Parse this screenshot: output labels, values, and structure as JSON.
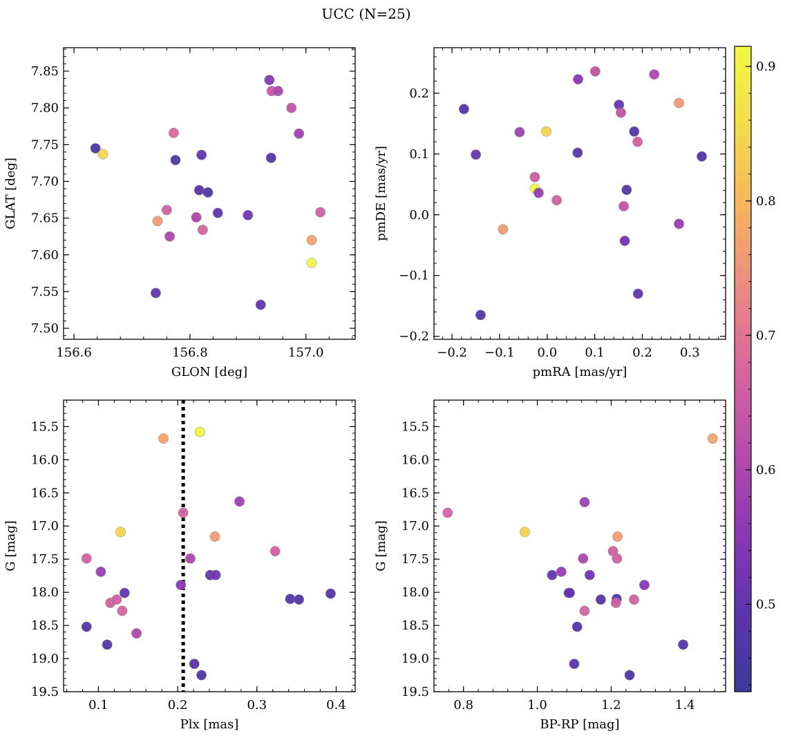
{
  "figure": {
    "title": "UCC (N=25)"
  },
  "colorbar": {
    "vmin": 0.435,
    "vmax": 0.915,
    "ticks": [
      0.5,
      0.6,
      0.7,
      0.8,
      0.9
    ],
    "tick_labels": [
      "0.5",
      "0.6",
      "0.7",
      "0.8",
      "0.9"
    ],
    "colormap": "plasma (truncated)",
    "colors": [
      "#3b3a99",
      "#5e35ad",
      "#8c38b3",
      "#b74dab",
      "#d5679e",
      "#ea8a83",
      "#f5b45e",
      "#f3dc4c",
      "#f1f744"
    ]
  },
  "chart_data": [
    {
      "type": "scatter",
      "xlabel": "GLON [deg]",
      "ylabel": "GLAT [deg]",
      "xlim": [
        156.582,
        157.085
      ],
      "ylim": [
        7.485,
        7.882
      ],
      "x_ticks": [
        156.6,
        156.8,
        157.0
      ],
      "x_tick_labels": [
        "156.6",
        "156.8",
        "157.0"
      ],
      "y_ticks": [
        7.5,
        7.55,
        7.6,
        7.65,
        7.7,
        7.75,
        7.8,
        7.85
      ],
      "y_tick_labels": [
        "7.50",
        "7.55",
        "7.60",
        "7.65",
        "7.70",
        "7.75",
        "7.80",
        "7.85"
      ],
      "points": [
        {
          "x": 156.637,
          "y": 7.745,
          "c": 0.47
        },
        {
          "x": 156.65,
          "y": 7.737,
          "c": 0.85
        },
        {
          "x": 156.772,
          "y": 7.766,
          "c": 0.68
        },
        {
          "x": 156.775,
          "y": 7.729,
          "c": 0.48
        },
        {
          "x": 156.82,
          "y": 7.736,
          "c": 0.5
        },
        {
          "x": 156.816,
          "y": 7.688,
          "c": 0.48
        },
        {
          "x": 156.831,
          "y": 7.685,
          "c": 0.47
        },
        {
          "x": 156.76,
          "y": 7.661,
          "c": 0.66
        },
        {
          "x": 156.744,
          "y": 7.646,
          "c": 0.76
        },
        {
          "x": 156.811,
          "y": 7.651,
          "c": 0.6
        },
        {
          "x": 156.822,
          "y": 7.634,
          "c": 0.67
        },
        {
          "x": 156.848,
          "y": 7.657,
          "c": 0.5
        },
        {
          "x": 156.765,
          "y": 7.625,
          "c": 0.6
        },
        {
          "x": 156.741,
          "y": 7.548,
          "c": 0.5
        },
        {
          "x": 156.9,
          "y": 7.654,
          "c": 0.52
        },
        {
          "x": 156.922,
          "y": 7.532,
          "c": 0.5
        },
        {
          "x": 156.937,
          "y": 7.838,
          "c": 0.55
        },
        {
          "x": 156.941,
          "y": 7.823,
          "c": 0.64
        },
        {
          "x": 156.952,
          "y": 7.823,
          "c": 0.6
        },
        {
          "x": 156.975,
          "y": 7.8,
          "c": 0.63
        },
        {
          "x": 156.988,
          "y": 7.765,
          "c": 0.58
        },
        {
          "x": 156.94,
          "y": 7.732,
          "c": 0.48
        },
        {
          "x": 157.025,
          "y": 7.658,
          "c": 0.66
        },
        {
          "x": 157.01,
          "y": 7.62,
          "c": 0.77
        },
        {
          "x": 157.01,
          "y": 7.589,
          "c": 0.91
        }
      ]
    },
    {
      "type": "scatter",
      "xlabel": "pmRA [mas/yr]",
      "ylabel": "pmDE [mas/yr]",
      "xlim": [
        -0.238,
        0.375
      ],
      "ylim": [
        -0.205,
        0.275
      ],
      "x_ticks": [
        -0.2,
        -0.1,
        0.0,
        0.1,
        0.2,
        0.3
      ],
      "x_tick_labels": [
        "−0.2",
        "−0.1",
        "0.0",
        "0.1",
        "0.2",
        "0.3"
      ],
      "y_ticks": [
        -0.2,
        -0.1,
        0.0,
        0.1,
        0.2
      ],
      "y_tick_labels": [
        "−0.2",
        "−0.1",
        "0.0",
        "0.1",
        "0.2"
      ],
      "points": [
        {
          "x": -0.175,
          "y": 0.174,
          "c": 0.48
        },
        {
          "x": -0.15,
          "y": 0.099,
          "c": 0.5
        },
        {
          "x": -0.14,
          "y": -0.165,
          "c": 0.47
        },
        {
          "x": -0.093,
          "y": -0.024,
          "c": 0.76
        },
        {
          "x": -0.058,
          "y": 0.136,
          "c": 0.58
        },
        {
          "x": -0.002,
          "y": 0.137,
          "c": 0.84
        },
        {
          "x": -0.026,
          "y": 0.043,
          "c": 0.91
        },
        {
          "x": -0.026,
          "y": 0.062,
          "c": 0.65
        },
        {
          "x": -0.018,
          "y": 0.036,
          "c": 0.57
        },
        {
          "x": 0.02,
          "y": 0.024,
          "c": 0.66
        },
        {
          "x": 0.065,
          "y": 0.223,
          "c": 0.55
        },
        {
          "x": 0.064,
          "y": 0.102,
          "c": 0.48
        },
        {
          "x": 0.101,
          "y": 0.236,
          "c": 0.63
        },
        {
          "x": 0.151,
          "y": 0.181,
          "c": 0.5
        },
        {
          "x": 0.155,
          "y": 0.168,
          "c": 0.63
        },
        {
          "x": 0.183,
          "y": 0.137,
          "c": 0.48
        },
        {
          "x": 0.19,
          "y": 0.12,
          "c": 0.66
        },
        {
          "x": 0.167,
          "y": 0.041,
          "c": 0.48
        },
        {
          "x": 0.161,
          "y": 0.014,
          "c": 0.63
        },
        {
          "x": 0.163,
          "y": -0.043,
          "c": 0.52
        },
        {
          "x": 0.191,
          "y": -0.13,
          "c": 0.5
        },
        {
          "x": 0.225,
          "y": 0.231,
          "c": 0.6
        },
        {
          "x": 0.277,
          "y": 0.184,
          "c": 0.76
        },
        {
          "x": 0.277,
          "y": -0.015,
          "c": 0.57
        },
        {
          "x": 0.325,
          "y": 0.096,
          "c": 0.48
        }
      ]
    },
    {
      "type": "scatter",
      "xlabel": "Plx [mas]",
      "ylabel": "G [mag]",
      "xlim": [
        0.056,
        0.424
      ],
      "ylim": [
        19.5,
        15.1
      ],
      "y_inverted": true,
      "x_ticks": [
        0.1,
        0.2,
        0.3,
        0.4
      ],
      "x_tick_labels": [
        "0.1",
        "0.2",
        "0.3",
        "0.4"
      ],
      "y_ticks": [
        15.5,
        16.0,
        16.5,
        17.0,
        17.5,
        18.0,
        18.5,
        19.0,
        19.5
      ],
      "y_tick_labels": [
        "15.5",
        "16.0",
        "16.5",
        "17.0",
        "17.5",
        "18.0",
        "18.5",
        "19.0",
        "19.5"
      ],
      "vline": {
        "x": 0.207,
        "style": "dotted",
        "color": "#000000"
      },
      "points": [
        {
          "x": 0.085,
          "y": 17.49,
          "c": 0.66
        },
        {
          "x": 0.085,
          "y": 18.52,
          "c": 0.48
        },
        {
          "x": 0.103,
          "y": 17.69,
          "c": 0.57
        },
        {
          "x": 0.111,
          "y": 18.79,
          "c": 0.48
        },
        {
          "x": 0.115,
          "y": 18.16,
          "c": 0.66
        },
        {
          "x": 0.123,
          "y": 18.11,
          "c": 0.66
        },
        {
          "x": 0.128,
          "y": 17.09,
          "c": 0.84
        },
        {
          "x": 0.13,
          "y": 18.28,
          "c": 0.67
        },
        {
          "x": 0.133,
          "y": 18.01,
          "c": 0.5
        },
        {
          "x": 0.148,
          "y": 18.62,
          "c": 0.6
        },
        {
          "x": 0.182,
          "y": 15.68,
          "c": 0.77
        },
        {
          "x": 0.204,
          "y": 17.89,
          "c": 0.55
        },
        {
          "x": 0.207,
          "y": 16.8,
          "c": 0.67
        },
        {
          "x": 0.216,
          "y": 17.49,
          "c": 0.6
        },
        {
          "x": 0.221,
          "y": 19.08,
          "c": 0.48
        },
        {
          "x": 0.228,
          "y": 15.58,
          "c": 0.91
        },
        {
          "x": 0.23,
          "y": 19.25,
          "c": 0.47
        },
        {
          "x": 0.241,
          "y": 17.74,
          "c": 0.5
        },
        {
          "x": 0.247,
          "y": 17.16,
          "c": 0.76
        },
        {
          "x": 0.248,
          "y": 17.74,
          "c": 0.52
        },
        {
          "x": 0.278,
          "y": 16.63,
          "c": 0.58
        },
        {
          "x": 0.323,
          "y": 17.38,
          "c": 0.66
        },
        {
          "x": 0.342,
          "y": 18.1,
          "c": 0.48
        },
        {
          "x": 0.353,
          "y": 18.11,
          "c": 0.48
        },
        {
          "x": 0.393,
          "y": 18.02,
          "c": 0.48
        }
      ]
    },
    {
      "type": "scatter",
      "xlabel": "BP-RP [mag]",
      "ylabel": "G [mag]",
      "xlim": [
        0.72,
        1.51
      ],
      "ylim": [
        19.5,
        15.1
      ],
      "y_inverted": true,
      "x_ticks": [
        0.8,
        1.0,
        1.2,
        1.4
      ],
      "x_tick_labels": [
        "0.8",
        "1.0",
        "1.2",
        "1.4"
      ],
      "y_ticks": [
        15.5,
        16.0,
        16.5,
        17.0,
        17.5,
        18.0,
        18.5,
        19.0,
        19.5
      ],
      "y_tick_labels": [
        "15.5",
        "16.0",
        "16.5",
        "17.0",
        "17.5",
        "18.0",
        "18.5",
        "19.0",
        "19.5"
      ],
      "points": [
        {
          "x": 1.475,
          "y": 15.68,
          "c": 0.77
        },
        {
          "x": 0.757,
          "y": 16.8,
          "c": 0.67
        },
        {
          "x": 0.966,
          "y": 17.09,
          "c": 0.84
        },
        {
          "x": 1.128,
          "y": 16.64,
          "c": 0.58
        },
        {
          "x": 1.217,
          "y": 17.16,
          "c": 0.76
        },
        {
          "x": 1.205,
          "y": 17.38,
          "c": 0.66
        },
        {
          "x": 1.216,
          "y": 17.49,
          "c": 0.66
        },
        {
          "x": 1.124,
          "y": 17.49,
          "c": 0.6
        },
        {
          "x": 1.065,
          "y": 17.69,
          "c": 0.57
        },
        {
          "x": 1.04,
          "y": 17.74,
          "c": 0.5
        },
        {
          "x": 1.142,
          "y": 17.74,
          "c": 0.52
        },
        {
          "x": 1.29,
          "y": 17.89,
          "c": 0.55
        },
        {
          "x": 1.085,
          "y": 18.01,
          "c": 0.48
        },
        {
          "x": 1.088,
          "y": 18.01,
          "c": 0.5
        },
        {
          "x": 1.172,
          "y": 18.11,
          "c": 0.48
        },
        {
          "x": 1.215,
          "y": 18.1,
          "c": 0.48
        },
        {
          "x": 1.262,
          "y": 18.11,
          "c": 0.66
        },
        {
          "x": 1.213,
          "y": 18.16,
          "c": 0.66
        },
        {
          "x": 1.128,
          "y": 18.28,
          "c": 0.67
        },
        {
          "x": 1.108,
          "y": 18.52,
          "c": 0.48
        },
        {
          "x": 1.395,
          "y": 18.79,
          "c": 0.48
        },
        {
          "x": 1.1,
          "y": 19.08,
          "c": 0.48
        },
        {
          "x": 1.25,
          "y": 19.25,
          "c": 0.47
        }
      ]
    }
  ]
}
